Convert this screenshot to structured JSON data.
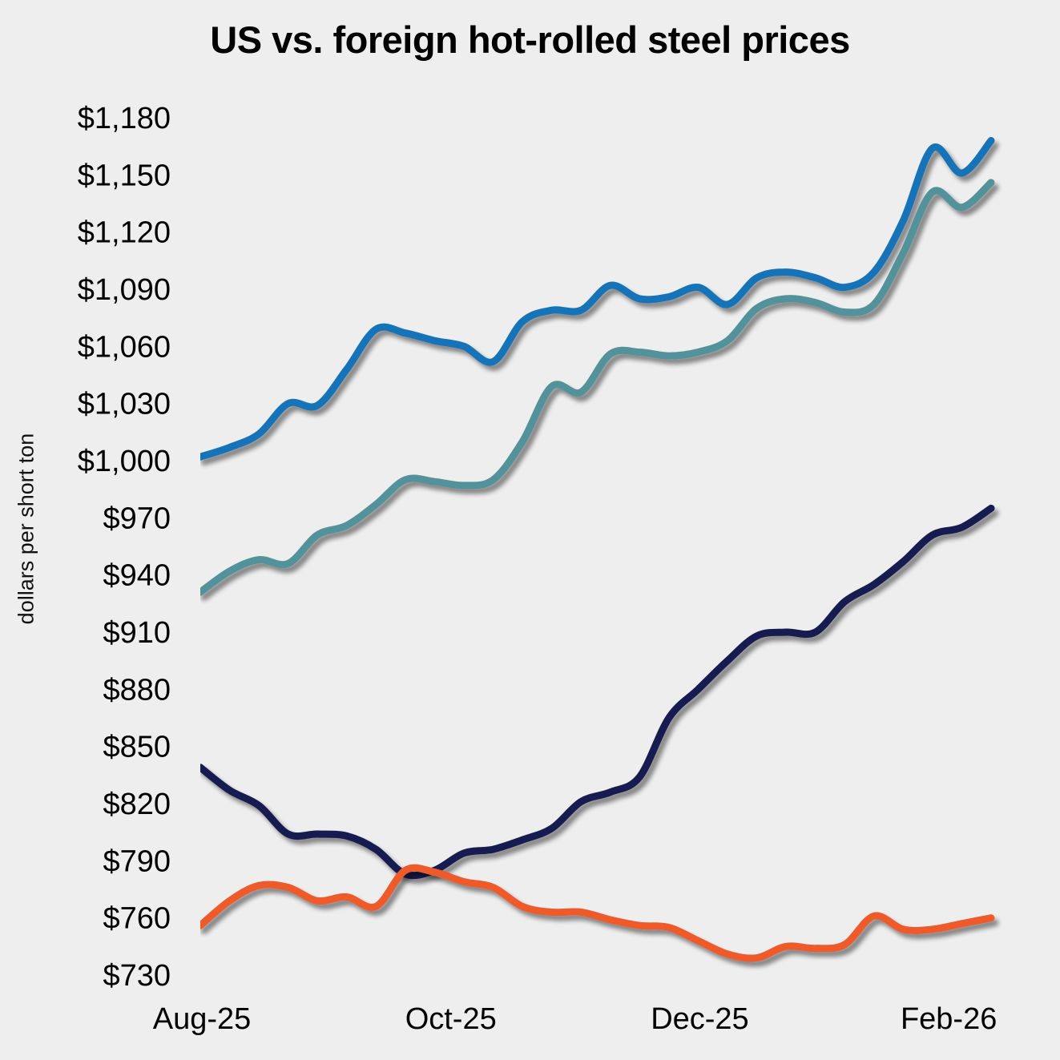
{
  "chart_data": {
    "type": "line",
    "title": "US vs. foreign hot-rolled steel prices",
    "xlabel": "",
    "ylabel": "dollars per short ton",
    "ylim": [
      730,
      1180
    ],
    "ytick_step": 30,
    "yticks": [
      "$1,180",
      "$1,150",
      "$1,120",
      "$1,090",
      "$1,060",
      "$1,030",
      "$1,000",
      "$970",
      "$940",
      "$910",
      "$880",
      "$850",
      "$820",
      "$790",
      "$760",
      "$730"
    ],
    "ytick_values": [
      1180,
      1150,
      1120,
      1090,
      1060,
      1030,
      1000,
      970,
      940,
      910,
      880,
      850,
      820,
      790,
      760,
      730
    ],
    "xticks": [
      {
        "label": "Aug-25",
        "index": 0
      },
      {
        "label": "Oct-25",
        "index": 8.5
      },
      {
        "label": "Dec-25",
        "index": 17
      },
      {
        "label": "Feb-26",
        "index": 25.5
      }
    ],
    "x_count": 28,
    "x_unit": "weekly observations, Aug-25 to late Feb-26",
    "grid": false,
    "legend": "none",
    "series": [
      {
        "name": "",
        "color": "#1273b8",
        "values": [
          1002,
          1007,
          1014,
          1030,
          1029,
          1048,
          1069,
          1067,
          1063,
          1060,
          1052,
          1073,
          1079,
          1079,
          1092,
          1085,
          1086,
          1091,
          1082,
          1096,
          1099,
          1096,
          1091,
          1099,
          1126,
          1164,
          1151,
          1168
        ]
      },
      {
        "name": "",
        "color": "#52929a",
        "values": [
          931,
          942,
          948,
          946,
          961,
          966,
          977,
          990,
          989,
          987,
          990,
          1010,
          1039,
          1036,
          1056,
          1057,
          1055,
          1057,
          1063,
          1080,
          1085,
          1083,
          1078,
          1082,
          1109,
          1141,
          1133,
          1146
        ]
      },
      {
        "name": "",
        "color": "#161b4f",
        "values": [
          839,
          827,
          819,
          804,
          804,
          803,
          796,
          783,
          785,
          794,
          796,
          801,
          807,
          821,
          826,
          834,
          865,
          880,
          895,
          908,
          910,
          910,
          926,
          935,
          947,
          961,
          965,
          975
        ]
      },
      {
        "name": "",
        "color": "#ee5a2c",
        "values": [
          756,
          769,
          777,
          776,
          769,
          771,
          766,
          785,
          784,
          779,
          776,
          766,
          763,
          763,
          759,
          756,
          755,
          748,
          741,
          739,
          745,
          744,
          746,
          761,
          754,
          754,
          757,
          760
        ]
      }
    ]
  }
}
